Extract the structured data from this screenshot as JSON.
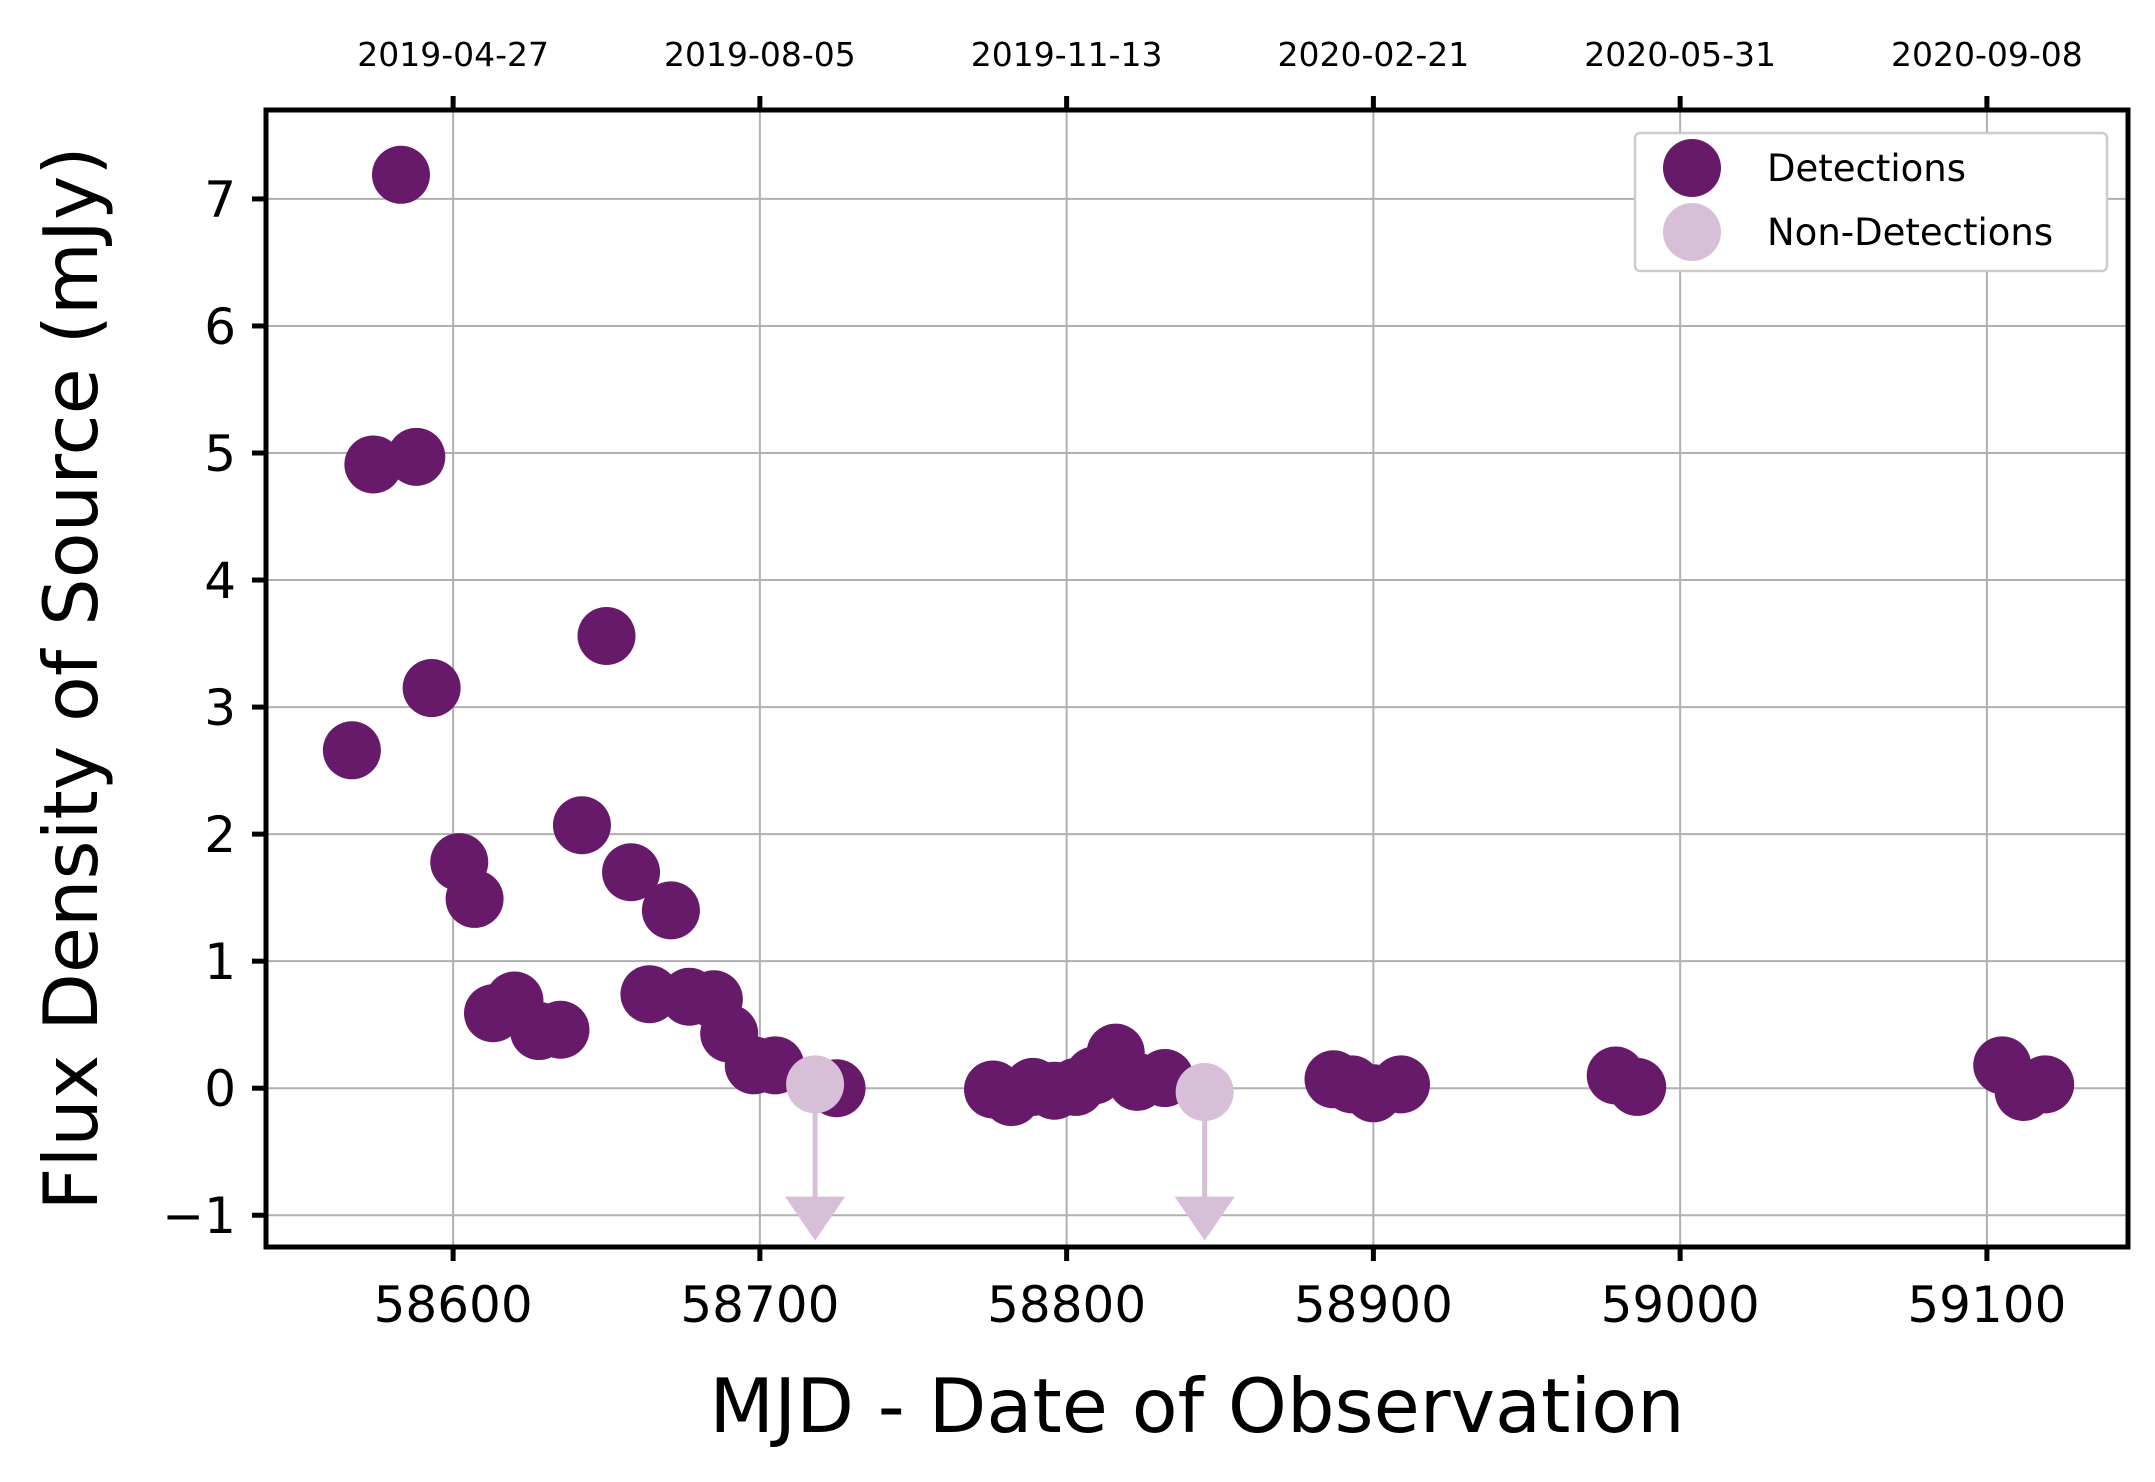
{
  "chart_data": {
    "type": "scatter",
    "xlabel": "MJD - Date of Observation",
    "ylabel": "Flux Density of Source (mJy)",
    "xlim": [
      58539,
      59146
    ],
    "ylim": [
      -1.25,
      7.7
    ],
    "grid": true,
    "legend_position": "top-right",
    "x_ticks": [
      58600,
      58700,
      58800,
      58900,
      59000,
      59100
    ],
    "x_tick_labels": [
      "58600",
      "58700",
      "58800",
      "58900",
      "59000",
      "59100"
    ],
    "y_ticks": [
      -1,
      0,
      1,
      2,
      3,
      4,
      5,
      6,
      7
    ],
    "y_tick_labels": [
      "−1",
      "0",
      "1",
      "2",
      "3",
      "4",
      "5",
      "6",
      "7"
    ],
    "top_axis_ticks": [
      58600,
      58700,
      58800,
      58900,
      59000,
      59100
    ],
    "top_axis_labels": [
      "2019-04-27",
      "2019-08-05",
      "2019-11-13",
      "2020-02-21",
      "2020-05-31",
      "2020-09-08"
    ],
    "series": [
      {
        "name": "Detections",
        "color": "#681A6A",
        "x": [
          58567,
          58574,
          58583,
          58588,
          58593,
          58602,
          58607,
          58613,
          58620,
          58628,
          58635,
          58642,
          58650,
          58658,
          58664,
          58671,
          58677,
          58685,
          58690,
          58698,
          58705,
          58725,
          58776,
          58782,
          58789,
          58796,
          58803,
          58809,
          58816,
          58823,
          58832,
          58887,
          58893,
          58900,
          58909,
          58979,
          58986,
          59105,
          59112,
          59119
        ],
        "y": [
          2.66,
          4.91,
          7.19,
          4.97,
          3.15,
          1.78,
          1.49,
          0.59,
          0.69,
          0.45,
          0.46,
          2.07,
          3.56,
          1.7,
          0.74,
          1.4,
          0.72,
          0.7,
          0.43,
          0.18,
          0.18,
          0.0,
          -0.01,
          -0.07,
          0.01,
          -0.02,
          0.01,
          0.1,
          0.28,
          0.05,
          0.08,
          0.07,
          0.03,
          -0.04,
          0.03,
          0.1,
          0.01,
          0.18,
          -0.03,
          0.03
        ]
      },
      {
        "name": "Non-Detections",
        "color": "#D8BFD8",
        "upper_limit": true,
        "x": [
          58718,
          58845
        ],
        "y": [
          0.03,
          -0.03
        ]
      }
    ]
  }
}
